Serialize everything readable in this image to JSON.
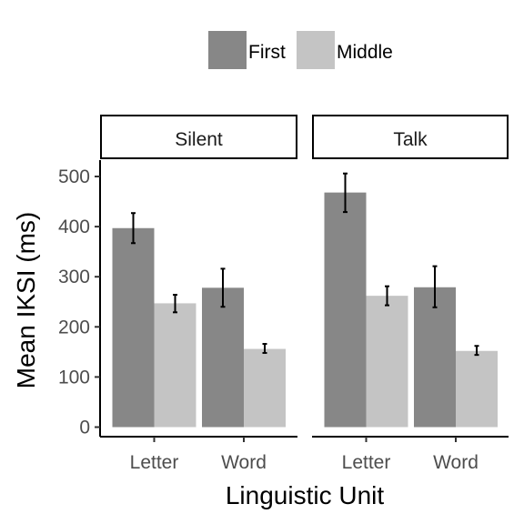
{
  "chart_data": {
    "type": "bar",
    "title": "",
    "xlabel": "Linguistic Unit",
    "ylabel": "Mean IKSI (ms)",
    "ylim": [
      0,
      530
    ],
    "yticks": [
      0,
      100,
      200,
      300,
      400,
      500
    ],
    "categories": [
      "Letter",
      "Word"
    ],
    "facets": [
      "Silent",
      "Talk"
    ],
    "legend": {
      "placement": "top",
      "entries": [
        "First",
        "Middle"
      ]
    },
    "grid": false,
    "colors": {
      "First": "#878787",
      "Middle": "#c4c4c4"
    },
    "panels": [
      {
        "facet": "Silent",
        "series": [
          {
            "name": "First",
            "values": [
              397,
              278
            ],
            "err_low": [
              367,
              240
            ],
            "err_high": [
              427,
              316
            ]
          },
          {
            "name": "Middle",
            "values": [
              247,
              156
            ],
            "err_low": [
              229,
              148
            ],
            "err_high": [
              264,
              166
            ]
          }
        ]
      },
      {
        "facet": "Talk",
        "series": [
          {
            "name": "First",
            "values": [
              468,
              279
            ],
            "err_low": [
              429,
              239
            ],
            "err_high": [
              506,
              321
            ]
          },
          {
            "name": "Middle",
            "values": [
              262,
              152
            ],
            "err_low": [
              243,
              144
            ],
            "err_high": [
              281,
              162
            ]
          }
        ]
      }
    ]
  }
}
